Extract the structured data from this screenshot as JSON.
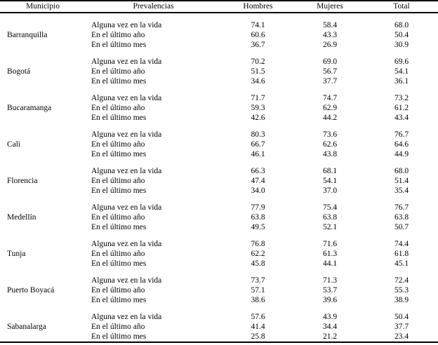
{
  "table": {
    "columns": [
      "Municipio",
      "Prevalencias",
      "Hombres",
      "Mujeres",
      "Total"
    ],
    "groups": [
      {
        "municipio": "Barranquilla",
        "rows": [
          {
            "label": "Alguna vez en la vida",
            "hombres": "74.1",
            "mujeres": "58.4",
            "total": "68.0"
          },
          {
            "label": "En el último año",
            "hombres": "60.6",
            "mujeres": "43.3",
            "total": "50.4"
          },
          {
            "label": "En el último mes",
            "hombres": "36.7",
            "mujeres": "26.9",
            "total": "30.9"
          }
        ]
      },
      {
        "municipio": "Bogotá",
        "rows": [
          {
            "label": "Alguna vez en la vida",
            "hombres": "70.2",
            "mujeres": "69.0",
            "total": "69.6"
          },
          {
            "label": "En el último año",
            "hombres": "51.5",
            "mujeres": "56.7",
            "total": "54.1"
          },
          {
            "label": "En el último mes",
            "hombres": "34.6",
            "mujeres": "37.7",
            "total": "36.1"
          }
        ]
      },
      {
        "municipio": "Bucaramanga",
        "rows": [
          {
            "label": "Alguna vez en la vida",
            "hombres": "71.7",
            "mujeres": "74.7",
            "total": "73.2"
          },
          {
            "label": "En el último año",
            "hombres": "59.3",
            "mujeres": "62.9",
            "total": "61.2"
          },
          {
            "label": "En el último mes",
            "hombres": "42.6",
            "mujeres": "44.2",
            "total": "43.4"
          }
        ]
      },
      {
        "municipio": "Cali",
        "rows": [
          {
            "label": "Alguna vez en la vida",
            "hombres": "80.3",
            "mujeres": "73.6",
            "total": "76.7"
          },
          {
            "label": "En el último año",
            "hombres": "66.7",
            "mujeres": "62.6",
            "total": "64.6"
          },
          {
            "label": "En el último mes",
            "hombres": "46.1",
            "mujeres": "43.8",
            "total": "44.9"
          }
        ]
      },
      {
        "municipio": "Florencia",
        "rows": [
          {
            "label": "Alguna vez en la vida",
            "hombres": "66.3",
            "mujeres": "68.1",
            "total": "68.0"
          },
          {
            "label": "En el último año",
            "hombres": "47.4",
            "mujeres": "54.1",
            "total": "51.4"
          },
          {
            "label": "En el último mes",
            "hombres": "34.0",
            "mujeres": "37.0",
            "total": "35.4"
          }
        ]
      },
      {
        "municipio": "Medellín",
        "rows": [
          {
            "label": "Alguna vez en la vida",
            "hombres": "77.9",
            "mujeres": "75.4",
            "total": "76.7"
          },
          {
            "label": "En el último año",
            "hombres": "63.8",
            "mujeres": "63.8",
            "total": "63.8"
          },
          {
            "label": "En el último mes",
            "hombres": "49.5",
            "mujeres": "52.1",
            "total": "50.7"
          }
        ]
      },
      {
        "municipio": "Tunja",
        "rows": [
          {
            "label": "Alguna vez en la vida",
            "hombres": "76.8",
            "mujeres": "71.6",
            "total": "74.4"
          },
          {
            "label": "En el último año",
            "hombres": "62.2",
            "mujeres": "61.3",
            "total": "61.8"
          },
          {
            "label": "En el último mes",
            "hombres": "45.8",
            "mujeres": "44.1",
            "total": "45.1"
          }
        ]
      },
      {
        "municipio": "Puerto Boyacá",
        "rows": [
          {
            "label": "Alguna vez en la vida",
            "hombres": "73.7",
            "mujeres": "71.3",
            "total": "72.4"
          },
          {
            "label": "En el último año",
            "hombres": "57.1",
            "mujeres": "53.7",
            "total": "55.3"
          },
          {
            "label": "En el último mes",
            "hombres": "38.6",
            "mujeres": "39.6",
            "total": "38.9"
          }
        ]
      },
      {
        "municipio": "Sabanalarga",
        "rows": [
          {
            "label": "Alguna vez en la vida",
            "hombres": "57.6",
            "mujeres": "43.9",
            "total": "50.4"
          },
          {
            "label": "En el último año",
            "hombres": "41.4",
            "mujeres": "34.4",
            "total": "37.7"
          },
          {
            "label": "En el último mes",
            "hombres": "25.8",
            "mujeres": "21.2",
            "total": "23.4"
          }
        ]
      }
    ]
  }
}
